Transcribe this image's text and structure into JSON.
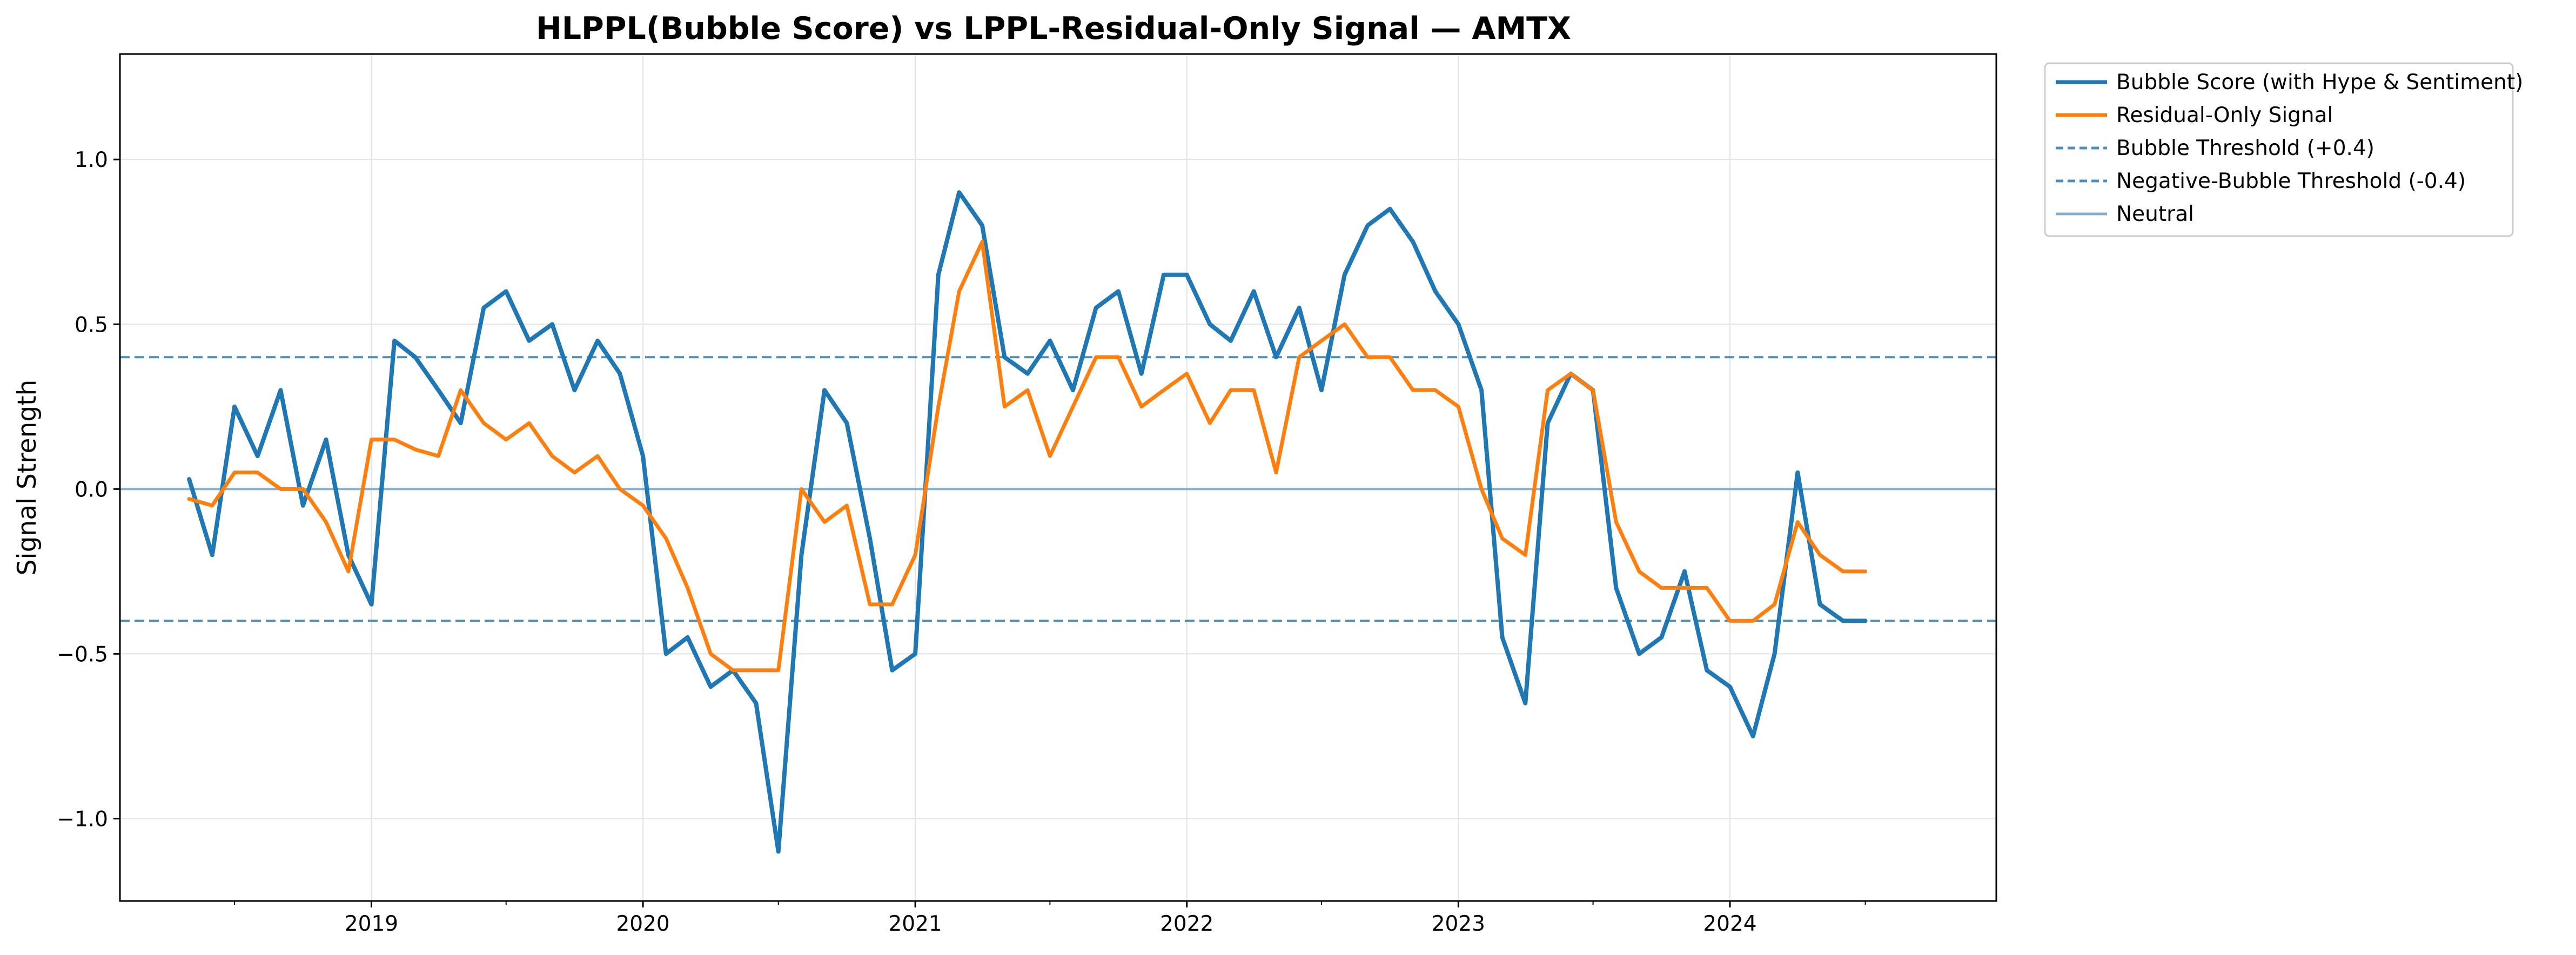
{
  "chart_data": {
    "type": "line",
    "title": "HLPPL(Bubble Score) vs LPPL-Residual-Only Signal — AMTX",
    "xlabel": "",
    "ylabel": "Signal Strength",
    "xlim": [
      "2018-01-28",
      "2024-12-24"
    ],
    "ylim": [
      -1.25,
      1.32
    ],
    "x_ticks": [
      "2019-01-01",
      "2020-01-01",
      "2021-01-01",
      "2022-01-01",
      "2023-01-01",
      "2024-01-01"
    ],
    "x_tick_labels": [
      "2019",
      "2020",
      "2021",
      "2022",
      "2023",
      "2024"
    ],
    "y_ticks": [
      -1.0,
      -0.5,
      0.0,
      0.5,
      1.0
    ],
    "y_tick_labels": [
      "−1.0",
      "−0.5",
      "0.0",
      "0.5",
      "1.0"
    ],
    "grid": true,
    "legend_position": "outside-top-right",
    "series": [
      {
        "name": "Bubble Score (with Hype & Sentiment)",
        "color": "#1f77b4",
        "style": "solid",
        "x": [
          "2018-05-01",
          "2018-06-01",
          "2018-07-01",
          "2018-08-01",
          "2018-09-01",
          "2018-10-01",
          "2018-11-01",
          "2018-12-01",
          "2019-01-01",
          "2019-02-01",
          "2019-03-01",
          "2019-04-01",
          "2019-05-01",
          "2019-06-01",
          "2019-07-01",
          "2019-08-01",
          "2019-09-01",
          "2019-10-01",
          "2019-11-01",
          "2019-12-01",
          "2020-01-01",
          "2020-02-01",
          "2020-03-01",
          "2020-04-01",
          "2020-05-01",
          "2020-06-01",
          "2020-07-01",
          "2020-08-01",
          "2020-09-01",
          "2020-10-01",
          "2020-11-01",
          "2020-12-01",
          "2021-01-01",
          "2021-02-01",
          "2021-03-01",
          "2021-04-01",
          "2021-05-01",
          "2021-06-01",
          "2021-07-01",
          "2021-08-01",
          "2021-09-01",
          "2021-10-01",
          "2021-11-01",
          "2021-12-01",
          "2022-01-01",
          "2022-02-01",
          "2022-03-01",
          "2022-04-01",
          "2022-05-01",
          "2022-06-01",
          "2022-07-01",
          "2022-08-01",
          "2022-09-01",
          "2022-10-01",
          "2022-11-01",
          "2022-12-01",
          "2023-01-01",
          "2023-02-01",
          "2023-03-01",
          "2023-04-01",
          "2023-05-01",
          "2023-06-01",
          "2023-07-01",
          "2023-08-01",
          "2023-09-01",
          "2023-10-01",
          "2023-11-01",
          "2023-12-01",
          "2024-01-01",
          "2024-02-01",
          "2024-03-01",
          "2024-04-01",
          "2024-05-01",
          "2024-06-01",
          "2024-07-01"
        ],
        "y": [
          0.03,
          -0.2,
          0.25,
          0.1,
          0.3,
          -0.05,
          0.15,
          -0.2,
          -0.35,
          0.45,
          0.4,
          0.3,
          0.2,
          0.55,
          0.6,
          0.45,
          0.5,
          0.3,
          0.45,
          0.35,
          0.1,
          -0.5,
          -0.45,
          -0.6,
          -0.55,
          -0.65,
          -1.1,
          -0.2,
          0.3,
          0.2,
          -0.15,
          -0.55,
          -0.5,
          0.65,
          0.9,
          0.8,
          0.4,
          0.35,
          0.45,
          0.3,
          0.55,
          0.6,
          0.35,
          0.65,
          0.65,
          0.5,
          0.45,
          0.6,
          0.4,
          0.55,
          0.3,
          0.65,
          0.8,
          0.85,
          0.75,
          0.6,
          0.5,
          0.3,
          -0.45,
          -0.65,
          0.2,
          0.35,
          0.3,
          -0.3,
          -0.5,
          -0.45,
          -0.25,
          -0.55,
          -0.6,
          -0.75,
          -0.5,
          0.05,
          -0.35,
          -0.4,
          -0.4
        ]
      },
      {
        "name": "Residual-Only Signal",
        "color": "#ff7f0e",
        "style": "solid",
        "x": [
          "2018-05-01",
          "2018-06-01",
          "2018-07-01",
          "2018-08-01",
          "2018-09-01",
          "2018-10-01",
          "2018-11-01",
          "2018-12-01",
          "2019-01-01",
          "2019-02-01",
          "2019-03-01",
          "2019-04-01",
          "2019-05-01",
          "2019-06-01",
          "2019-07-01",
          "2019-08-01",
          "2019-09-01",
          "2019-10-01",
          "2019-11-01",
          "2019-12-01",
          "2020-01-01",
          "2020-02-01",
          "2020-03-01",
          "2020-04-01",
          "2020-05-01",
          "2020-06-01",
          "2020-07-01",
          "2020-08-01",
          "2020-09-01",
          "2020-10-01",
          "2020-11-01",
          "2020-12-01",
          "2021-01-01",
          "2021-02-01",
          "2021-03-01",
          "2021-04-01",
          "2021-05-01",
          "2021-06-01",
          "2021-07-01",
          "2021-08-01",
          "2021-09-01",
          "2021-10-01",
          "2021-11-01",
          "2021-12-01",
          "2022-01-01",
          "2022-02-01",
          "2022-03-01",
          "2022-04-01",
          "2022-05-01",
          "2022-06-01",
          "2022-07-01",
          "2022-08-01",
          "2022-09-01",
          "2022-10-01",
          "2022-11-01",
          "2022-12-01",
          "2023-01-01",
          "2023-02-01",
          "2023-03-01",
          "2023-04-01",
          "2023-05-01",
          "2023-06-01",
          "2023-07-01",
          "2023-08-01",
          "2023-09-01",
          "2023-10-01",
          "2023-11-01",
          "2023-12-01",
          "2024-01-01",
          "2024-02-01",
          "2024-03-01",
          "2024-04-01",
          "2024-05-01",
          "2024-06-01",
          "2024-07-01"
        ],
        "y": [
          -0.03,
          -0.05,
          0.05,
          0.05,
          0.0,
          0.0,
          -0.1,
          -0.25,
          0.15,
          0.15,
          0.12,
          0.1,
          0.3,
          0.2,
          0.15,
          0.2,
          0.1,
          0.05,
          0.1,
          0.0,
          -0.05,
          -0.15,
          -0.3,
          -0.5,
          -0.55,
          -0.55,
          -0.55,
          0.0,
          -0.1,
          -0.05,
          -0.35,
          -0.35,
          -0.2,
          0.25,
          0.6,
          0.75,
          0.25,
          0.3,
          0.1,
          0.25,
          0.4,
          0.4,
          0.25,
          0.3,
          0.35,
          0.2,
          0.3,
          0.3,
          0.05,
          0.4,
          0.45,
          0.5,
          0.4,
          0.4,
          0.3,
          0.3,
          0.25,
          0.0,
          -0.15,
          -0.2,
          0.3,
          0.35,
          0.3,
          -0.1,
          -0.25,
          -0.3,
          -0.3,
          -0.3,
          -0.4,
          -0.4,
          -0.35,
          -0.1,
          -0.2,
          -0.25,
          -0.25
        ]
      }
    ],
    "reference_lines": [
      {
        "name": "Bubble Threshold (+0.4)",
        "y": 0.4,
        "color": "#4a8fbf",
        "style": "dashed"
      },
      {
        "name": "Negative-Bubble Threshold (-0.4)",
        "y": -0.4,
        "color": "#4a8fbf",
        "style": "dashed"
      },
      {
        "name": "Neutral",
        "y": 0.0,
        "color": "#7fb0d4",
        "style": "solid"
      }
    ]
  }
}
